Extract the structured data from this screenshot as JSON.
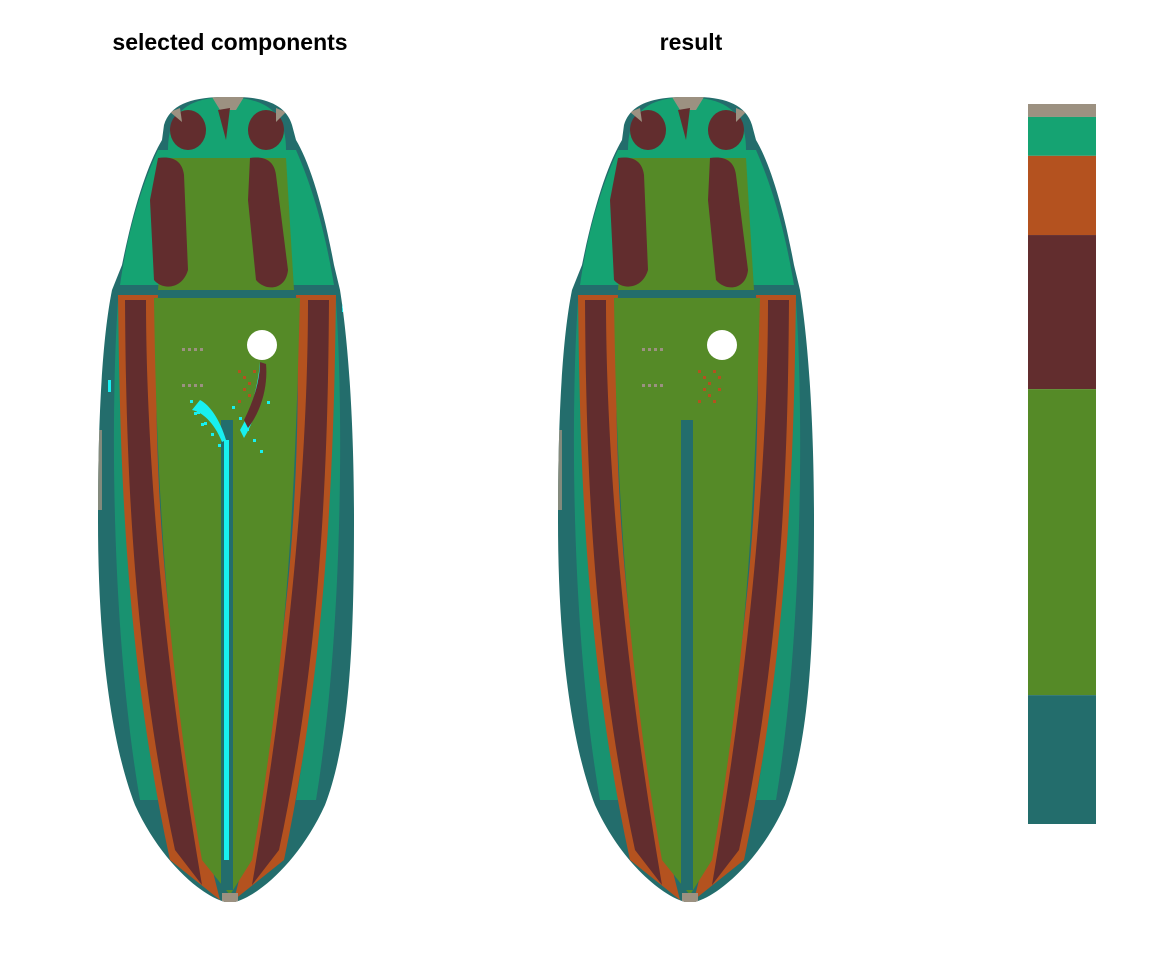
{
  "titles": {
    "left": "selected components",
    "right": "result"
  },
  "palette": {
    "gray": "#9c9181",
    "teal_light": "#15a372",
    "orange": "#b4521f",
    "maroon": "#622d2e",
    "green": "#558a27",
    "teal_dark": "#236d6c",
    "cyan": "#18f0f0",
    "white": "#ffffff"
  },
  "legend_strip": [
    {
      "color": "#9c9181",
      "proportion": 0.018
    },
    {
      "color": "#15a372",
      "proportion": 0.054
    },
    {
      "color": "#b4521f",
      "proportion": 0.11
    },
    {
      "color": "#622d2e",
      "proportion": 0.214
    },
    {
      "color": "#558a27",
      "proportion": 0.425
    },
    {
      "color": "#236d6c",
      "proportion": 0.179
    }
  ]
}
